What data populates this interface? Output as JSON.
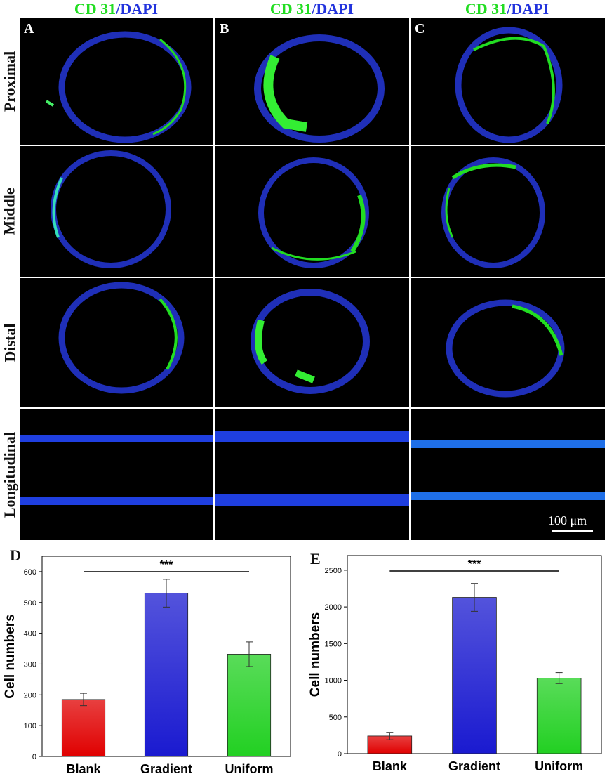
{
  "columns": [
    {
      "letter": "A",
      "marker": "CD 31",
      "sep": "/",
      "stain": "DAPI"
    },
    {
      "letter": "B",
      "marker": "CD 31",
      "sep": "/",
      "stain": "DAPI"
    },
    {
      "letter": "C",
      "marker": "CD 31",
      "sep": "/",
      "stain": "DAPI"
    }
  ],
  "rows": [
    "Proximal",
    "Middle",
    "Distal",
    "Longitudinal"
  ],
  "scale_bar": "100 μm",
  "colors": {
    "cd31": "#22dd22",
    "dapi": "#2233dd",
    "blank_bar": "#e00000",
    "gradient_bar": "#1a1ad0",
    "uniform_bar": "#22d022"
  },
  "chart_data": [
    {
      "type": "bar",
      "panel": "D",
      "categories": [
        "Blank",
        "Gradient",
        "Uniform"
      ],
      "values": [
        185,
        530,
        332
      ],
      "errors": [
        20,
        45,
        40
      ],
      "ylabel": "Cell numbers",
      "ylim": [
        0,
        650
      ],
      "yticks": [
        0,
        100,
        200,
        300,
        400,
        500,
        600
      ],
      "significance": "***"
    },
    {
      "type": "bar",
      "panel": "E",
      "categories": [
        "Blank",
        "Gradient",
        "Uniform"
      ],
      "values": [
        240,
        2130,
        1030
      ],
      "errors": [
        50,
        190,
        75
      ],
      "ylabel": "Cell numbers",
      "ylim": [
        0,
        2700
      ],
      "yticks": [
        0,
        500,
        1000,
        1500,
        2000,
        2500
      ],
      "significance": "***"
    }
  ]
}
